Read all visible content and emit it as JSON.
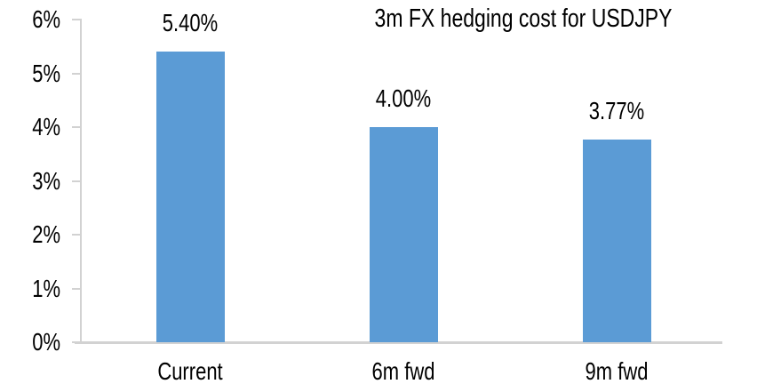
{
  "chart_data": {
    "type": "bar",
    "title": "3m FX hedging cost for USDJPY",
    "categories": [
      "Current",
      "6m fwd",
      "9m fwd"
    ],
    "values": [
      5.4,
      4.0,
      3.77
    ],
    "data_labels": [
      "5.40%",
      "4.00%",
      "3.77%"
    ],
    "xlabel": "",
    "ylabel": "",
    "ylim": [
      0,
      6
    ],
    "ytick_labels": [
      "0%",
      "1%",
      "2%",
      "3%",
      "4%",
      "5%",
      "6%"
    ],
    "grid": false,
    "legend_position": "none",
    "bar_color": "#5B9BD5",
    "axis_color": "#D2D2D2",
    "text_color": "#000000",
    "background_color": "#FFFFFF"
  }
}
